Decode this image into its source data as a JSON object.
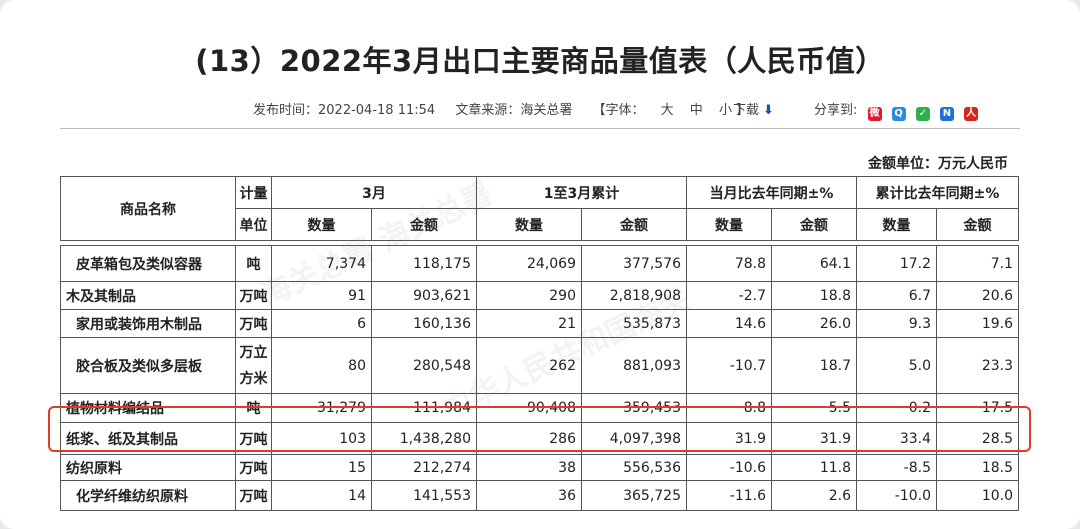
{
  "title": "(13）2022年3月出口主要商品量值表（人民币值）",
  "meta": {
    "publish_label": "发布时间：",
    "publish_time": "2022-04-18 11:54",
    "source_label": "文章来源：",
    "source": "海关总署",
    "font_label": "【字体：",
    "font_large": "大",
    "font_medium": "中",
    "font_small": "小",
    "font_close": "】",
    "download": "下载",
    "share": "分享到:"
  },
  "unit_note": "金额单位：万元人民币",
  "header": {
    "name": "商品名称",
    "unit_top": "计量",
    "unit_bottom": "单位",
    "march": "3月",
    "ytd": "1至3月累计",
    "month_yoy": "当月比去年同期±%",
    "ytd_yoy": "累计比去年同期±%",
    "qty": "数量",
    "amt": "金额"
  },
  "rows": [
    {
      "name": "皮革箱包及类似容器",
      "unit": "吨",
      "q": "7,374",
      "a": "118,175",
      "yq": "24,069",
      "ya": "377,576",
      "mq": "78.8",
      "ma": "64.1",
      "cq": "17.2",
      "ca": "7.1"
    },
    {
      "name": "木及其制品",
      "unit": "万吨",
      "q": "91",
      "a": "903,621",
      "yq": "290",
      "ya": "2,818,908",
      "mq": "-2.7",
      "ma": "18.8",
      "cq": "6.7",
      "ca": "20.6"
    },
    {
      "name": "家用或装饰用木制品",
      "unit": "万吨",
      "q": "6",
      "a": "160,136",
      "yq": "21",
      "ya": "535,873",
      "mq": "14.6",
      "ma": "26.0",
      "cq": "9.3",
      "ca": "19.6"
    },
    {
      "name": "胶合板及类似多层板",
      "unit1": "万立",
      "unit2": "方米",
      "q": "80",
      "a": "280,548",
      "yq": "262",
      "ya": "881,093",
      "mq": "-10.7",
      "ma": "18.7",
      "cq": "5.0",
      "ca": "23.3"
    },
    {
      "name": "植物材料编结品",
      "unit": "吨",
      "q": "31,279",
      "a": "111,984",
      "yq": "90,408",
      "ya": "359,453",
      "mq": "8.8",
      "ma": "5.5",
      "cq": "0.2",
      "ca": "17.5"
    },
    {
      "name": "纸浆、纸及其制品",
      "unit": "万吨",
      "q": "103",
      "a": "1,438,280",
      "yq": "286",
      "ya": "4,097,398",
      "mq": "31.9",
      "ma": "31.9",
      "cq": "33.4",
      "ca": "28.5"
    },
    {
      "name": "纺织原料",
      "unit": "万吨",
      "q": "15",
      "a": "212,274",
      "yq": "38",
      "ya": "556,536",
      "mq": "-10.6",
      "ma": "11.8",
      "cq": "-8.5",
      "ca": "18.5"
    },
    {
      "name": "化学纤维纺织原料",
      "unit": "万吨",
      "q": "14",
      "a": "141,553",
      "yq": "36",
      "ya": "365,725",
      "mq": "-11.6",
      "ma": "2.6",
      "cq": "-10.0",
      "ca": "10.0"
    }
  ],
  "colors": {
    "highlight": "#e23a2a",
    "download_arrow": "#1a56b8"
  },
  "share_icons": [
    "weibo-icon",
    "qzone-icon",
    "wechat-icon",
    "renren-icon",
    "douban-icon"
  ]
}
